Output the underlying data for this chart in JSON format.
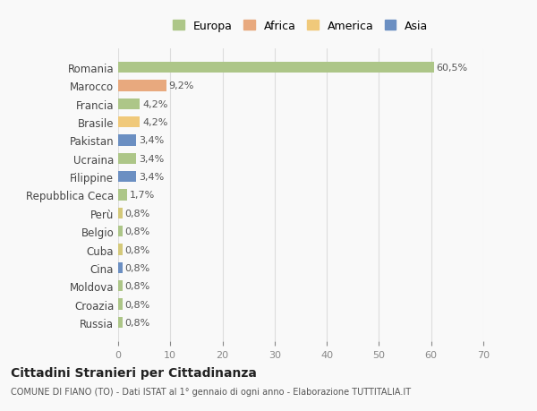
{
  "countries": [
    "Romania",
    "Marocco",
    "Francia",
    "Brasile",
    "Pakistan",
    "Ucraina",
    "Filippine",
    "Repubblica Ceca",
    "Perù",
    "Belgio",
    "Cuba",
    "Cina",
    "Moldova",
    "Croazia",
    "Russia"
  ],
  "values": [
    60.5,
    9.2,
    4.2,
    4.2,
    3.4,
    3.4,
    3.4,
    1.7,
    0.8,
    0.8,
    0.8,
    0.8,
    0.8,
    0.8,
    0.8
  ],
  "labels": [
    "60,5%",
    "9,2%",
    "4,2%",
    "4,2%",
    "3,4%",
    "3,4%",
    "3,4%",
    "1,7%",
    "0,8%",
    "0,8%",
    "0,8%",
    "0,8%",
    "0,8%",
    "0,8%",
    "0,8%"
  ],
  "colors": [
    "#adc688",
    "#e8a97e",
    "#adc688",
    "#f0c97a",
    "#6b8fc2",
    "#adc688",
    "#6b8fc2",
    "#adc688",
    "#d4c97a",
    "#adc688",
    "#d4c97a",
    "#6b8fc2",
    "#adc688",
    "#adc688",
    "#adc688"
  ],
  "legend_labels": [
    "Europa",
    "Africa",
    "America",
    "Asia"
  ],
  "legend_colors": [
    "#adc688",
    "#e8a97e",
    "#f0c97a",
    "#6b8fc2"
  ],
  "title": "Cittadini Stranieri per Cittadinanza",
  "subtitle": "COMUNE DI FIANO (TO) - Dati ISTAT al 1° gennaio di ogni anno - Elaborazione TUTTITALIA.IT",
  "xlim": [
    0,
    70
  ],
  "xticks": [
    0,
    10,
    20,
    30,
    40,
    50,
    60,
    70
  ],
  "background_color": "#f9f9f9",
  "grid_color": "#dddddd"
}
